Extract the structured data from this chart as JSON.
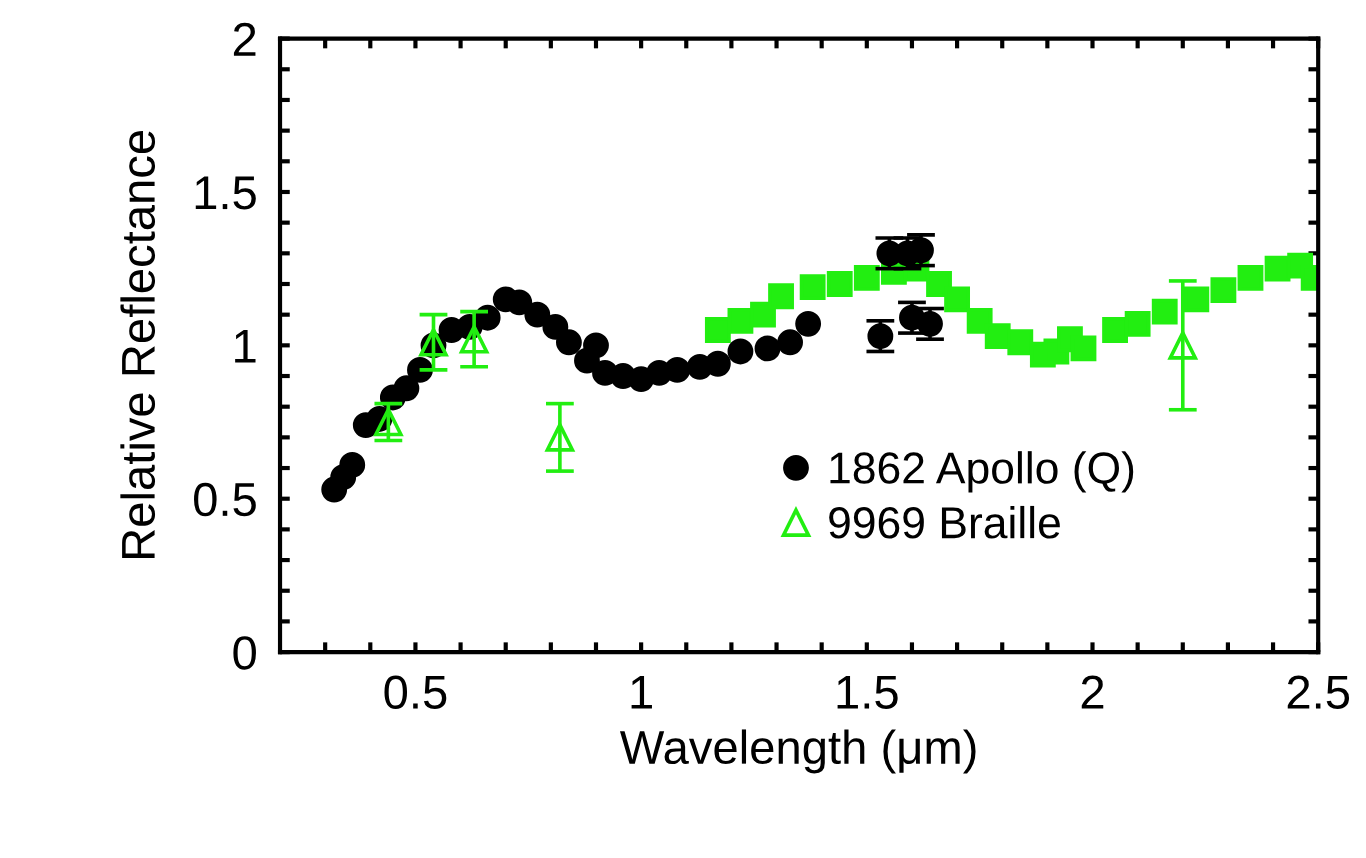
{
  "chart_data": {
    "type": "scatter",
    "xlabel": "Wavelength (μm)",
    "ylabel": "Relative Reflectance",
    "xlim": [
      0.2,
      2.5
    ],
    "ylim": [
      0,
      2
    ],
    "xticks": [
      {
        "value": 0.3,
        "label": null
      },
      {
        "value": 0.4,
        "label": null
      },
      0.5,
      {
        "value": 0.6,
        "label": null
      },
      {
        "value": 0.7,
        "label": null
      },
      {
        "value": 0.8,
        "label": null
      },
      {
        "value": 0.9,
        "label": null
      },
      1,
      {
        "value": 1.1,
        "label": null
      },
      {
        "value": 1.2,
        "label": null
      },
      {
        "value": 1.3,
        "label": null
      },
      {
        "value": 1.4,
        "label": null
      },
      1.5,
      {
        "value": 1.6,
        "label": null
      },
      {
        "value": 1.7,
        "label": null
      },
      {
        "value": 1.8,
        "label": null
      },
      {
        "value": 1.9,
        "label": null
      },
      2,
      {
        "value": 2.1,
        "label": null
      },
      {
        "value": 2.2,
        "label": null
      },
      {
        "value": 2.3,
        "label": null
      },
      {
        "value": 2.4,
        "label": null
      },
      2.5
    ],
    "yticks": [
      0,
      {
        "value": 0.1,
        "label": null
      },
      {
        "value": 0.2,
        "label": null
      },
      {
        "value": 0.3,
        "label": null
      },
      {
        "value": 0.4,
        "label": null
      },
      0.5,
      {
        "value": 0.6,
        "label": null
      },
      {
        "value": 0.7,
        "label": null
      },
      {
        "value": 0.8,
        "label": null
      },
      {
        "value": 0.9,
        "label": null
      },
      1,
      {
        "value": 1.1,
        "label": null
      },
      {
        "value": 1.2,
        "label": null
      },
      {
        "value": 1.3,
        "label": null
      },
      {
        "value": 1.4,
        "label": null
      },
      1.5,
      {
        "value": 1.6,
        "label": null
      },
      {
        "value": 1.7,
        "label": null
      },
      {
        "value": 1.8,
        "label": null
      },
      {
        "value": 1.9,
        "label": null
      },
      2
    ],
    "grid": false,
    "legend": "bottom",
    "series": [
      {
        "color": "#22ee11",
        "marker": "square",
        "x": [
          1.17,
          1.22,
          1.27,
          1.31,
          1.38,
          1.44,
          1.5,
          1.56,
          1.61,
          1.66,
          1.7,
          1.75,
          1.79,
          1.84,
          1.89,
          1.92,
          1.95,
          1.98,
          2.05,
          2.1,
          2.16,
          2.23,
          2.29,
          2.35,
          2.41,
          2.46,
          2.49
        ],
        "values": [
          1.05,
          1.08,
          1.1,
          1.16,
          1.19,
          1.2,
          1.22,
          1.24,
          1.25,
          1.2,
          1.15,
          1.08,
          1.03,
          1.01,
          0.97,
          0.98,
          1.02,
          0.99,
          1.05,
          1.07,
          1.11,
          1.15,
          1.18,
          1.22,
          1.25,
          1.26,
          1.22
        ]
      },
      {
        "name": "1862 Apollo (Q)",
        "color": "#000000",
        "marker": "circle",
        "x": [
          0.32,
          0.34,
          0.36,
          0.39,
          0.42,
          0.45,
          0.48,
          0.51,
          0.54,
          0.58,
          0.62,
          0.66,
          0.7,
          0.73,
          0.77,
          0.81,
          0.84,
          0.88,
          0.9,
          0.92,
          0.96,
          1.0,
          1.04,
          1.08,
          1.13,
          1.17,
          1.22,
          1.28,
          1.33,
          1.37,
          1.53,
          1.6,
          1.64,
          1.55,
          1.59,
          1.62
        ],
        "values": [
          0.53,
          0.57,
          0.61,
          0.74,
          0.76,
          0.83,
          0.86,
          0.92,
          1.0,
          1.05,
          1.06,
          1.09,
          1.15,
          1.14,
          1.1,
          1.06,
          1.01,
          0.95,
          1.0,
          0.91,
          0.9,
          0.89,
          0.91,
          0.92,
          0.93,
          0.94,
          0.98,
          0.99,
          1.01,
          1.07,
          1.03,
          1.09,
          1.07,
          1.3,
          1.3,
          1.31
        ],
        "errors": [
          null,
          null,
          null,
          null,
          null,
          null,
          null,
          null,
          null,
          null,
          null,
          null,
          null,
          null,
          null,
          null,
          null,
          null,
          null,
          null,
          null,
          null,
          null,
          null,
          null,
          null,
          null,
          null,
          null,
          null,
          0.05,
          0.05,
          0.05,
          0.05,
          0.05,
          0.05
        ]
      },
      {
        "name": "9969 Braille",
        "color": "#22ee11",
        "marker": "triangle",
        "x": [
          0.44,
          0.54,
          0.63,
          0.82,
          2.2
        ],
        "values": [
          0.75,
          1.01,
          1.02,
          0.7,
          1.0
        ],
        "errors": [
          0.06,
          0.09,
          0.09,
          0.11,
          0.21
        ]
      }
    ]
  }
}
